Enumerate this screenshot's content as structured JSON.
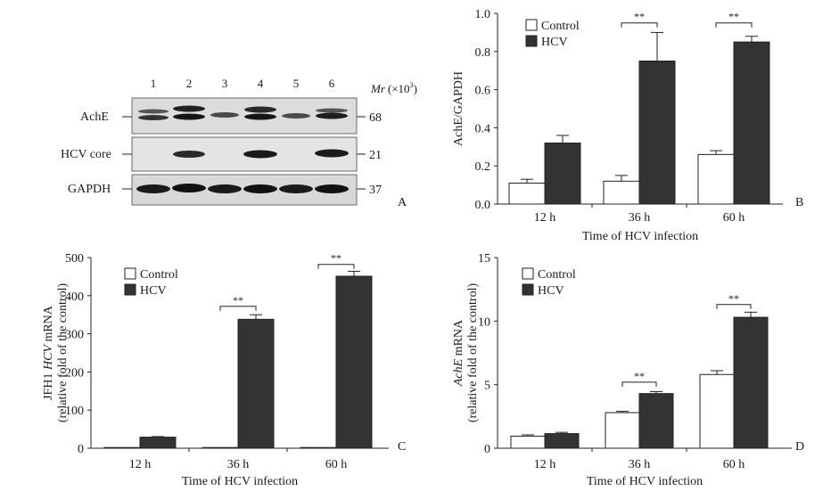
{
  "blot": {
    "lanes": [
      "1",
      "2",
      "3",
      "4",
      "5",
      "6"
    ],
    "mr_label": "Mr",
    "mr_unit": "(×10",
    "mr_exp": "3",
    "mr_close": ")",
    "rows": [
      {
        "label": "AchE",
        "mw": "68"
      },
      {
        "label": "HCV core",
        "mw": "21"
      },
      {
        "label": "GAPDH",
        "mw": "37"
      }
    ],
    "panel_letter": "A"
  },
  "chart_data": [
    {
      "panel": "B",
      "type": "bar",
      "categories": [
        "12 h",
        "36 h",
        "60 h"
      ],
      "series": [
        {
          "name": "Control",
          "values": [
            0.11,
            0.12,
            0.26
          ],
          "errors": [
            0.02,
            0.03,
            0.02
          ],
          "color": "#ffffff"
        },
        {
          "name": "HCV",
          "values": [
            0.32,
            0.75,
            0.85
          ],
          "errors": [
            0.04,
            0.15,
            0.03
          ],
          "color": "#333333"
        }
      ],
      "ylim": [
        0,
        1.0
      ],
      "yticks": [
        "0.0",
        "0.2",
        "0.4",
        "0.6",
        "0.8",
        "1.0"
      ],
      "ylabel": "AchE/GAPDH",
      "ylabel_lines": [],
      "xlabel": "Time of HCV infection",
      "significance": [
        {
          "category": "36 h",
          "label": "**",
          "level": 0.95
        },
        {
          "category": "60 h",
          "label": "**",
          "level": 0.95
        }
      ],
      "legend_position": "top-left"
    },
    {
      "panel": "C",
      "type": "bar",
      "categories": [
        "12 h",
        "36 h",
        "60 h"
      ],
      "series": [
        {
          "name": "Control",
          "values": [
            1,
            1,
            1
          ],
          "errors": [
            0,
            0,
            0
          ],
          "color": "#ffffff"
        },
        {
          "name": "HCV",
          "values": [
            29,
            338,
            451
          ],
          "errors": [
            1.5,
            12,
            13
          ],
          "color": "#333333"
        }
      ],
      "ylim": [
        0,
        500
      ],
      "yticks": [
        "0",
        "100",
        "200",
        "300",
        "400",
        "500"
      ],
      "ylabel": "",
      "ylabel_lines": [
        {
          "parts": [
            {
              "t": "JFH1 ",
              "i": false
            },
            {
              "t": "HCV",
              "i": true
            },
            {
              "t": " mRNA",
              "i": false
            }
          ]
        },
        {
          "parts": [
            {
              "t": "(relative fold of the control)",
              "i": false
            }
          ]
        }
      ],
      "xlabel": "Time of HCV infection",
      "significance": [
        {
          "category": "36 h",
          "label": "**",
          "level": 372
        },
        {
          "category": "60 h",
          "label": "**",
          "level": 482
        }
      ],
      "legend_position": "top-left"
    },
    {
      "panel": "D",
      "type": "bar",
      "categories": [
        "12 h",
        "36 h",
        "60 h"
      ],
      "series": [
        {
          "name": "Control",
          "values": [
            0.95,
            2.8,
            5.8
          ],
          "errors": [
            0.1,
            0.1,
            0.3
          ],
          "color": "#ffffff"
        },
        {
          "name": "HCV",
          "values": [
            1.15,
            4.3,
            10.3
          ],
          "errors": [
            0.1,
            0.15,
            0.4
          ],
          "color": "#333333"
        }
      ],
      "ylim": [
        0,
        15
      ],
      "yticks": [
        "0",
        "5",
        "10",
        "15"
      ],
      "ylabel": "",
      "ylabel_lines": [
        {
          "parts": [
            {
              "t": "AchE",
              "i": true
            },
            {
              "t": " mRNA",
              "i": false
            }
          ]
        },
        {
          "parts": [
            {
              "t": "(relative fold of the control)",
              "i": false
            }
          ]
        }
      ],
      "xlabel": "Time of HCV infection",
      "significance": [
        {
          "category": "36 h",
          "label": "**",
          "level": 5.2
        },
        {
          "category": "60 h",
          "label": "**",
          "level": 11.3
        }
      ],
      "legend_position": "top-left"
    }
  ]
}
